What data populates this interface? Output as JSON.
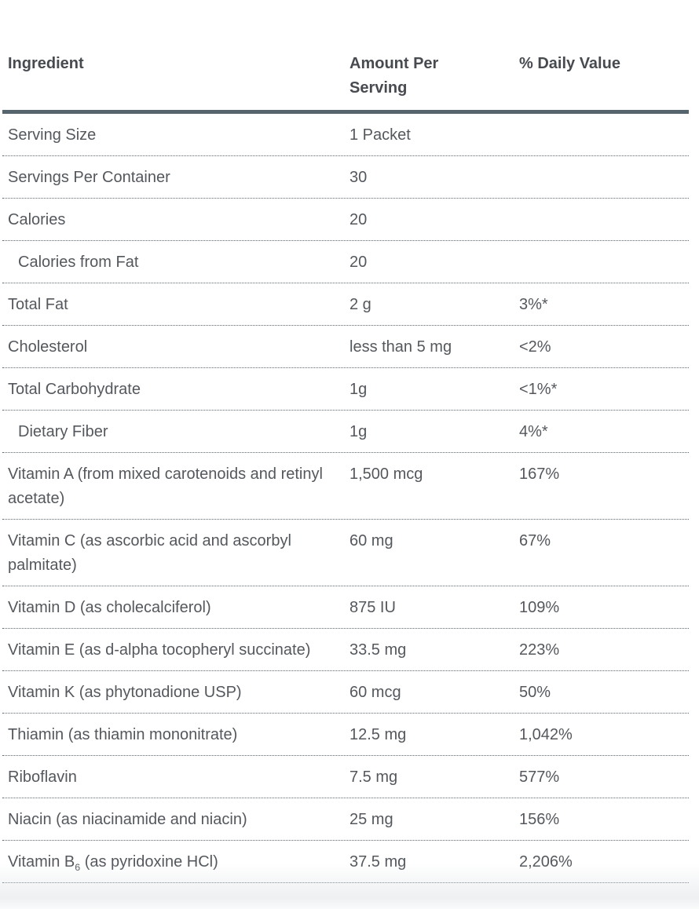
{
  "colors": {
    "header_text": "#474b50",
    "body_text": "#54585d",
    "header_rule": "#56646e",
    "dotted_separator": "#5c666f",
    "background": "#ffffff"
  },
  "table": {
    "columns": [
      {
        "label": "Ingredient"
      },
      {
        "label": "Amount Per Serving"
      },
      {
        "label": "% Daily Value"
      }
    ],
    "rows": [
      {
        "ingredient": "Serving Size",
        "amount": "1 Packet",
        "dv": "",
        "indent": false
      },
      {
        "ingredient": "Servings Per Container",
        "amount": "30",
        "dv": "",
        "indent": false
      },
      {
        "ingredient": "Calories",
        "amount": "20",
        "dv": "",
        "indent": false
      },
      {
        "ingredient": "Calories from Fat",
        "amount": "20",
        "dv": "",
        "indent": true
      },
      {
        "ingredient": "Total Fat",
        "amount": "2 g",
        "dv": "3%*",
        "indent": false
      },
      {
        "ingredient": "Cholesterol",
        "amount": "less than 5 mg",
        "dv": "<2%",
        "indent": false
      },
      {
        "ingredient": "Total Carbohydrate",
        "amount": "1g",
        "dv": "<1%*",
        "indent": false
      },
      {
        "ingredient": "Dietary Fiber",
        "amount": "1g",
        "dv": "4%*",
        "indent": true
      },
      {
        "ingredient": "Vitamin A (from mixed carotenoids and retinyl acetate)",
        "amount": "1,500 mcg",
        "dv": "167%",
        "indent": false
      },
      {
        "ingredient": "Vitamin C (as ascorbic acid and ascorbyl palmitate)",
        "amount": "60 mg",
        "dv": "67%",
        "indent": false
      },
      {
        "ingredient": "Vitamin D (as cholecalciferol)",
        "amount": "875 IU",
        "dv": "109%",
        "indent": false
      },
      {
        "ingredient": "Vitamin E (as d-alpha tocopheryl succinate)",
        "amount": "33.5 mg",
        "dv": "223%",
        "indent": false
      },
      {
        "ingredient": "Vitamin K (as phytonadione USP)",
        "amount": "60 mcg",
        "dv": "50%",
        "indent": false
      },
      {
        "ingredient": "Thiamin (as thiamin mononitrate)",
        "amount": "12.5 mg",
        "dv": "1,042%",
        "indent": false
      },
      {
        "ingredient": "Riboflavin",
        "amount": "7.5 mg",
        "dv": "577%",
        "indent": false
      },
      {
        "ingredient": "Niacin (as niacinamide and niacin)",
        "amount": "25 mg",
        "dv": "156%",
        "indent": false
      },
      {
        "ingredient_parts": [
          {
            "t": "Vitamin B"
          },
          {
            "t": "6",
            "sub": true
          },
          {
            "t": " (as pyridoxine HCl)"
          }
        ],
        "amount": "37.5 mg",
        "dv": "2,206%",
        "indent": false
      }
    ]
  }
}
